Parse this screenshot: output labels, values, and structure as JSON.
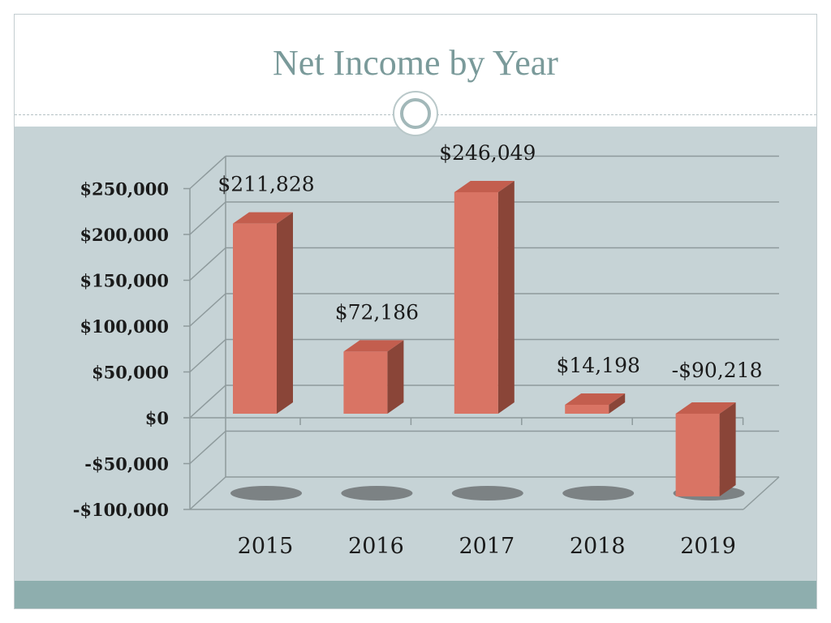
{
  "slide": {
    "title": "Net Income by Year"
  },
  "colors": {
    "panel": "#c6d3d6",
    "bar_front": "#d97464",
    "bar_side": "#8a4538",
    "bar_top": "#c35e4e",
    "title": "#7a9a9a",
    "footer": "#8eaeae"
  },
  "chart_data": {
    "type": "bar",
    "title": "Net Income by Year",
    "categories": [
      "2015",
      "2016",
      "2017",
      "2018",
      "2019"
    ],
    "values": [
      211828,
      72186,
      246049,
      14198,
      -90218
    ],
    "data_labels": [
      "$211,828",
      "$72,186",
      "$246,049",
      "$14,198",
      "-$90,218"
    ],
    "y_ticks": [
      250000,
      200000,
      150000,
      100000,
      50000,
      0,
      -50000,
      -100000
    ],
    "y_tick_labels": [
      "$250,000",
      "$200,000",
      "$150,000",
      "$100,000",
      "$50,000",
      "$0",
      "-$50,000",
      "-$100,000"
    ],
    "ylim": [
      -100000,
      250000
    ],
    "grid": true,
    "style": "3d-column",
    "legend": "none"
  }
}
